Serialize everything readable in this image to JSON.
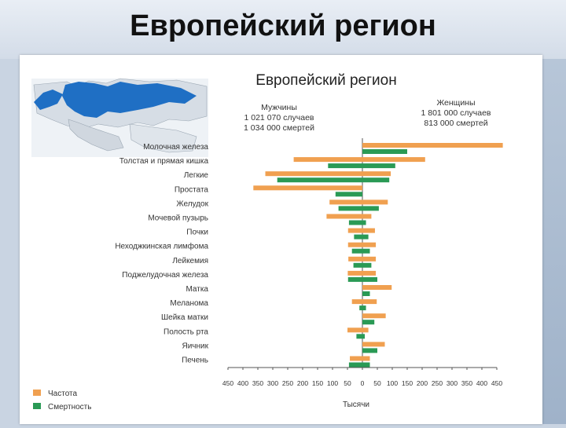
{
  "slide": {
    "title": "Европейский регион"
  },
  "chart_data": {
    "type": "bar",
    "orientation": "horizontal",
    "layout": "butterfly",
    "title": "Европейский регион",
    "left_group": {
      "label": "Мужчины",
      "line1": "1 021 070 случаев",
      "line2": "1 034 000 смертей"
    },
    "right_group": {
      "label": "Женщины",
      "line1": "1 801 000 случаев",
      "line2": "813 000 смертей"
    },
    "categories": [
      "Молочная железа",
      "Толстая и прямая кишка",
      "Легкие",
      "Простата",
      "Желудок",
      "Мочевой пузырь",
      "Почки",
      "Неходжкинская лимфома",
      "Лейкемия",
      "Поджелудочная железа",
      "Матка",
      "Меланома",
      "Шейка матки",
      "Полость рта",
      "Яичник",
      "Печень"
    ],
    "series": [
      {
        "name": "Частота",
        "color": "#f0a050",
        "men": [
          0,
          230,
          325,
          365,
          110,
          120,
          48,
          48,
          47,
          49,
          0,
          35,
          0,
          50,
          0,
          42
        ],
        "women": [
          470,
          210,
          95,
          0,
          85,
          30,
          42,
          45,
          45,
          45,
          98,
          48,
          78,
          20,
          75,
          25
        ]
      },
      {
        "name": "Смертность",
        "color": "#2a9a55",
        "men": [
          0,
          115,
          285,
          90,
          80,
          45,
          28,
          35,
          30,
          48,
          0,
          10,
          0,
          20,
          0,
          45
        ],
        "women": [
          150,
          110,
          90,
          0,
          55,
          12,
          20,
          25,
          30,
          50,
          25,
          12,
          40,
          8,
          50,
          25
        ]
      }
    ],
    "x_ticks": [
      450,
      400,
      350,
      300,
      250,
      200,
      150,
      100,
      50,
      0,
      50,
      100,
      150,
      200,
      250,
      300,
      350,
      400,
      450
    ],
    "xlim": [
      -450,
      450
    ],
    "xlabel": "Тысячи",
    "legend_position": "bottom-left"
  }
}
